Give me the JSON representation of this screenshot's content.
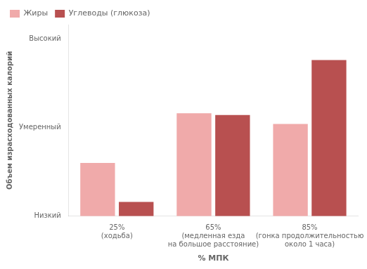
{
  "chart_data": {
    "type": "bar",
    "xlabel": "% МПК",
    "ylabel": "Объем израсходованных калорий",
    "categories": [
      "25%\n(ходьба)",
      "65%\n(медленная езда\nна большое расстояние)",
      "85%\n(гонка продолжительностью\nоколо 1 часа)"
    ],
    "series": [
      {
        "name": "Жиры",
        "color": "#F0AAAA",
        "values": [
          0.3,
          0.58,
          0.52
        ]
      },
      {
        "name": "Углеводы (глюкоза)",
        "color": "#B85050",
        "values": [
          0.08,
          0.57,
          0.88
        ]
      }
    ],
    "ylim": [
      0,
      1.08
    ],
    "yticks": [
      {
        "value": 0.0,
        "label": "Низкий"
      },
      {
        "value": 0.5,
        "label": "Умеренный"
      },
      {
        "value": 1.0,
        "label": "Высокий"
      }
    ],
    "grid": false,
    "legend": "upper left"
  }
}
